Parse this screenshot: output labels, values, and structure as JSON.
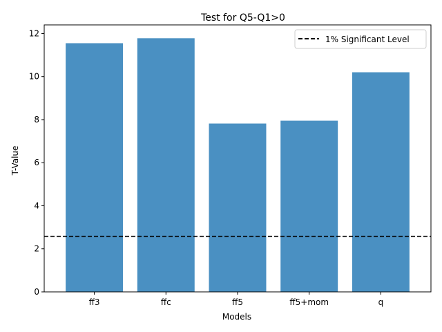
{
  "chart_data": {
    "type": "bar",
    "title": "Test for Q5-Q1>0",
    "xlabel": "Models",
    "ylabel": "T-Value",
    "categories": [
      "ff3",
      "ffc",
      "ff5",
      "ff5+mom",
      "q"
    ],
    "values": [
      11.55,
      11.78,
      7.82,
      7.95,
      10.2
    ],
    "ylim": [
      0,
      12.4
    ],
    "yticks": [
      0,
      2,
      4,
      6,
      8,
      10,
      12
    ],
    "bar_color": "#4a90c2",
    "reference_line": {
      "label": "1% Significant Level",
      "value": 2.58,
      "style": "dashed",
      "color": "#000000"
    },
    "legend_position": "top-right",
    "grid": false
  }
}
